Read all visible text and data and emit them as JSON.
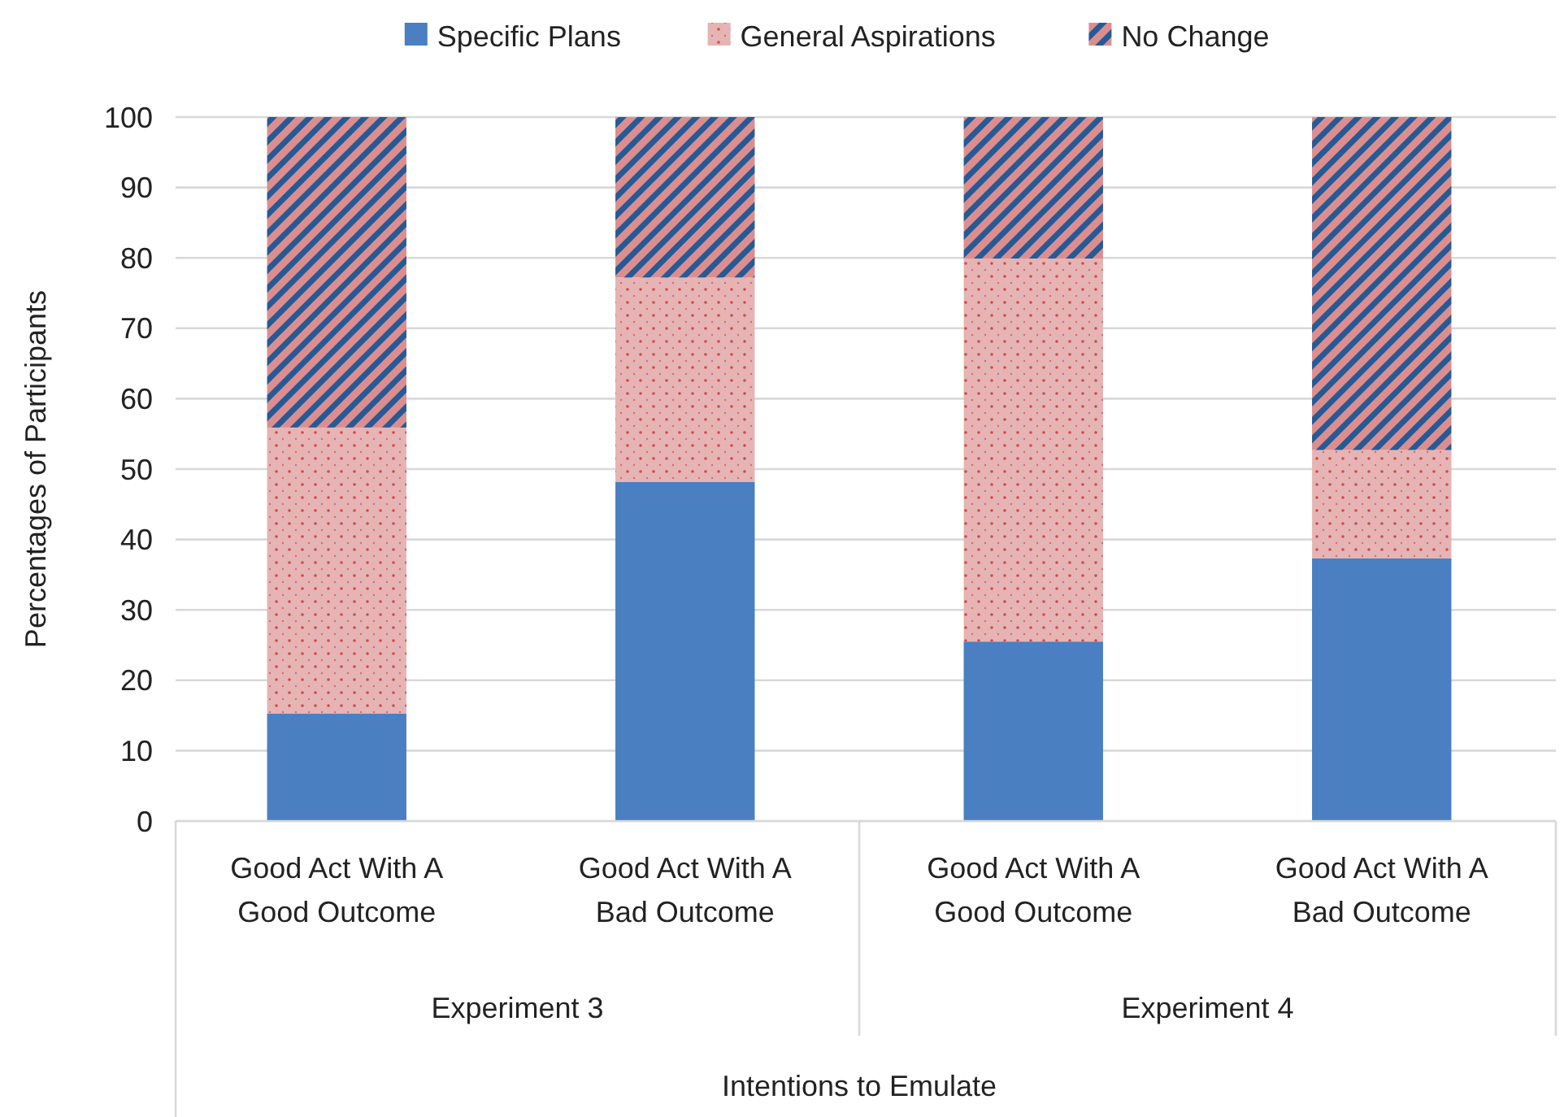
{
  "chart_data": {
    "type": "bar",
    "stacked": true,
    "ylabel": "Percentages of Participants",
    "xlabel": "Intentions to Emulate",
    "categories": [
      "Good Act With A Good Outcome",
      "Good Act With A Bad Outcome",
      "Good Act With A Good Outcome",
      "Good Act With A Bad Outcome"
    ],
    "annotations": [
      "Experiment 3",
      "Experiment 4"
    ],
    "series": [
      {
        "name": "Specific Plans",
        "color": "#4a7fc1",
        "values": [
          15.3,
          48.2,
          25.5,
          37.3
        ]
      },
      {
        "name": "General Aspirations",
        "color": "#e6b4b4",
        "values": [
          40.6,
          29.0,
          54.4,
          15.4
        ]
      },
      {
        "name": "No Change",
        "color": "#255a96",
        "values": [
          44.1,
          22.8,
          20.1,
          47.3
        ]
      }
    ],
    "ylim": [
      0,
      100
    ],
    "yticks": [
      0,
      10,
      20,
      30,
      40,
      50,
      60,
      70,
      80,
      90,
      100
    ],
    "grid": "y",
    "legend": "top"
  }
}
